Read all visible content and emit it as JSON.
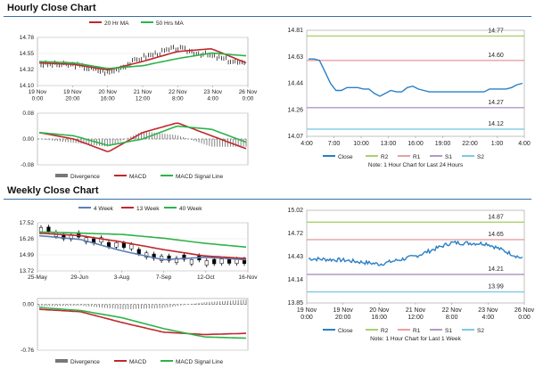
{
  "hourly": {
    "title": "Hourly Close Chart",
    "price": {
      "legend": [
        "20 Hr MA",
        "50 Hrs MA"
      ],
      "yticks": [
        "14.78",
        "14.55",
        "14.32",
        "14.10"
      ],
      "xticks": [
        "19 Nov\n0:00",
        "19 Nov\n20:00",
        "20 Nov\n16:00",
        "21 Nov\n12:00",
        "22 Nov\n8:00",
        "23 Nov\n4:00",
        "26 Nov\n0:00"
      ]
    },
    "macd": {
      "yticks": [
        "0.08",
        "0.00",
        "-0.08"
      ],
      "legend": [
        "Divergence",
        "MACD",
        "MACD Signal Line"
      ]
    },
    "pivot": {
      "yticks": [
        "14.81",
        "14.63",
        "14.44",
        "14.26",
        "14.07"
      ],
      "xticks": [
        "4:00",
        "7:00",
        "10:00",
        "13:00",
        "16:00",
        "19:00",
        "22:00",
        "1:00",
        "4:00"
      ],
      "level_labels": [
        "14.77",
        "14.60",
        "14.27",
        "14.12"
      ],
      "legend": [
        "Close",
        "R2",
        "R1",
        "S1",
        "S2"
      ],
      "note": "Note: 1 Hour Chart for Last 24 Hours"
    }
  },
  "weekly": {
    "title": "Weekly Close Chart",
    "price": {
      "legend": [
        "4 Week",
        "13 Week",
        "40 Week"
      ],
      "yticks": [
        "17.52",
        "16.26",
        "14.99",
        "13.72"
      ],
      "xticks": [
        "25-May",
        "29-Jun",
        "3-Aug",
        "7-Sep",
        "12-Oct",
        "16-Nov"
      ]
    },
    "macd": {
      "yticks": [
        "0.00",
        "-0.76"
      ],
      "legend": [
        "Divergence",
        "MACD",
        "MACD Signal Line"
      ]
    },
    "pivot": {
      "yticks": [
        "15.02",
        "14.72",
        "14.43",
        "14.14",
        "13.85"
      ],
      "xticks": [
        "19 Nov\n0:00",
        "19 Nov\n20:00",
        "20 Nov\n16:00",
        "21 Nov\n12:00",
        "22 Nov\n8:00",
        "23 Nov\n4:00",
        "26 Nov\n0:00"
      ],
      "level_labels": [
        "14.87",
        "14.65",
        "14.21",
        "13.99"
      ],
      "legend": [
        "Close",
        "R2",
        "R1",
        "S1",
        "S2"
      ],
      "note": "Note: 1 Hour Chart for Last 1 Week"
    }
  },
  "colors": {
    "ma_short": "#c0282d",
    "ma_long": "#2db34a",
    "ma_4wk": "#5a7fb8",
    "price": "#000000",
    "divergence": "#777777",
    "close": "#2a7fc4",
    "r2": "#a6d26d",
    "r1": "#e8a0a0",
    "s1": "#b399c4",
    "s2": "#7fc8e8",
    "title_rule": "#3a6ea5"
  },
  "chart_data": [
    {
      "type": "line",
      "title": "",
      "ylim": [
        14.1,
        14.78
      ],
      "categories": [
        "19 Nov 0:00",
        "19 Nov 20:00",
        "20 Nov 16:00",
        "21 Nov 12:00",
        "22 Nov 8:00",
        "23 Nov 4:00",
        "26 Nov 0:00"
      ],
      "series": [
        {
          "name": "20 Hr MA",
          "values": [
            14.42,
            14.4,
            14.32,
            14.44,
            14.58,
            14.62,
            14.42
          ]
        },
        {
          "name": "50 Hrs MA",
          "values": [
            14.44,
            14.42,
            14.34,
            14.38,
            14.48,
            14.56,
            14.52
          ]
        },
        {
          "name": "",
          "values": [
            14.4,
            14.39,
            14.28,
            14.5,
            14.63,
            14.52,
            14.4
          ]
        }
      ]
    },
    {
      "type": "line",
      "title": "",
      "ylim": [
        -0.08,
        0.08
      ],
      "categories": [
        "19 Nov 0:00",
        "19 Nov 20:00",
        "20 Nov 16:00",
        "21 Nov 12:00",
        "22 Nov 8:00",
        "23 Nov 4:00",
        "26 Nov 0:00"
      ],
      "series": [
        {
          "name": "MACD",
          "values": [
            0.02,
            0.0,
            -0.04,
            0.02,
            0.05,
            0.01,
            -0.03
          ]
        },
        {
          "name": "MACD Signal Line",
          "values": [
            0.02,
            0.01,
            -0.02,
            0.0,
            0.04,
            0.03,
            -0.01
          ]
        }
      ]
    },
    {
      "type": "line",
      "title": "",
      "ylim": [
        14.07,
        14.81
      ],
      "categories": [
        "4:00",
        "7:00",
        "10:00",
        "13:00",
        "16:00",
        "19:00",
        "22:00",
        "1:00",
        "4:00"
      ],
      "series": [
        {
          "name": "Close",
          "values": [
            14.61,
            14.39,
            14.41,
            14.35,
            14.4,
            14.38,
            14.38,
            14.4,
            14.43
          ]
        },
        {
          "name": "R2",
          "values": [
            14.77,
            14.77,
            14.77,
            14.77,
            14.77,
            14.77,
            14.77,
            14.77,
            14.77
          ]
        },
        {
          "name": "R1",
          "values": [
            14.6,
            14.6,
            14.6,
            14.6,
            14.6,
            14.6,
            14.6,
            14.6,
            14.6
          ]
        },
        {
          "name": "S1",
          "values": [
            14.27,
            14.27,
            14.27,
            14.27,
            14.27,
            14.27,
            14.27,
            14.27,
            14.27
          ]
        },
        {
          "name": "S2",
          "values": [
            14.12,
            14.12,
            14.12,
            14.12,
            14.12,
            14.12,
            14.12,
            14.12,
            14.12
          ]
        }
      ]
    },
    {
      "type": "line",
      "title": "",
      "ylim": [
        13.72,
        17.52
      ],
      "categories": [
        "25-May",
        "29-Jun",
        "3-Aug",
        "7-Sep",
        "12-Oct",
        "16-Nov"
      ],
      "series": [
        {
          "name": "4 Week",
          "values": [
            16.5,
            16.2,
            15.3,
            14.6,
            14.8,
            14.6
          ]
        },
        {
          "name": "13 Week",
          "values": [
            16.7,
            16.5,
            16.0,
            15.4,
            14.9,
            14.7
          ]
        },
        {
          "name": "40 Week",
          "values": [
            16.8,
            16.7,
            16.6,
            16.3,
            15.9,
            15.6
          ]
        }
      ]
    },
    {
      "type": "line",
      "title": "",
      "ylim": [
        -0.76,
        0.1
      ],
      "categories": [
        "25-May",
        "29-Jun",
        "3-Aug",
        "7-Sep",
        "12-Oct",
        "16-Nov"
      ],
      "series": [
        {
          "name": "MACD",
          "values": [
            -0.08,
            -0.12,
            -0.3,
            -0.46,
            -0.5,
            -0.48
          ]
        },
        {
          "name": "MACD Signal Line",
          "values": [
            -0.05,
            -0.1,
            -0.22,
            -0.4,
            -0.54,
            -0.56
          ]
        }
      ]
    },
    {
      "type": "line",
      "title": "",
      "ylim": [
        13.85,
        15.02
      ],
      "categories": [
        "19 Nov 0:00",
        "19 Nov 20:00",
        "20 Nov 16:00",
        "21 Nov 12:00",
        "22 Nov 8:00",
        "23 Nov 4:00",
        "26 Nov 0:00"
      ],
      "series": [
        {
          "name": "Close",
          "values": [
            14.41,
            14.39,
            14.34,
            14.44,
            14.61,
            14.6,
            14.41
          ]
        },
        {
          "name": "R2",
          "values": [
            14.87,
            14.87,
            14.87,
            14.87,
            14.87,
            14.87,
            14.87
          ]
        },
        {
          "name": "R1",
          "values": [
            14.65,
            14.65,
            14.65,
            14.65,
            14.65,
            14.65,
            14.65
          ]
        },
        {
          "name": "S1",
          "values": [
            14.21,
            14.21,
            14.21,
            14.21,
            14.21,
            14.21,
            14.21
          ]
        },
        {
          "name": "S2",
          "values": [
            13.99,
            13.99,
            13.99,
            13.99,
            13.99,
            13.99,
            13.99
          ]
        }
      ]
    }
  ]
}
